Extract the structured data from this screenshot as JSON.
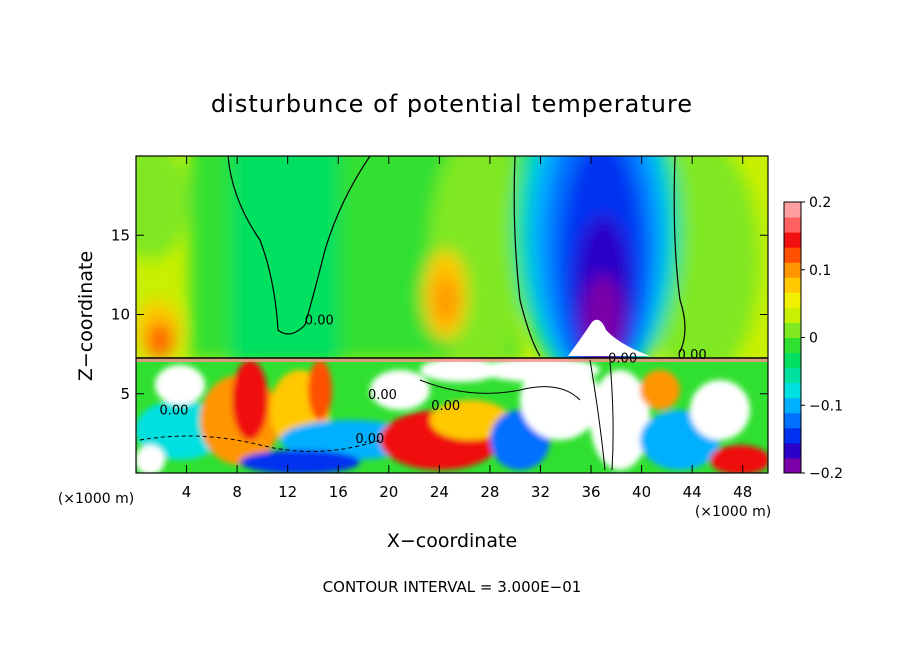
{
  "chart_data": {
    "type": "heatmap",
    "title": "disturbunce of potential temperature",
    "xlabel": "X−coordinate",
    "ylabel": "Z−coordinate",
    "xlim": [
      0,
      50
    ],
    "ylim": [
      0,
      20
    ],
    "x_ticks": [
      4,
      8,
      12,
      16,
      20,
      24,
      28,
      32,
      36,
      40,
      44,
      48
    ],
    "x_tick_labels": [
      "4",
      "8",
      "12",
      "16",
      "20",
      "24",
      "28",
      "32",
      "36",
      "40",
      "44",
      "48"
    ],
    "y_ticks": [
      5,
      10,
      15
    ],
    "y_tick_labels": [
      "5",
      "10",
      "15"
    ],
    "x_unit_left": "(×1000 m)",
    "x_unit_right": "(×1000 m)",
    "footer": "CONTOUR INTERVAL = 3.000E−01",
    "colorbar": {
      "min": -0.2,
      "max": 0.2,
      "ticks": [
        0.2,
        0.1,
        0,
        -0.1,
        -0.2
      ],
      "tick_labels": [
        "0.2",
        "0.1",
        "0",
        "−0.1",
        "−0.2"
      ],
      "colors": [
        "#7a00a8",
        "#2a00c8",
        "#0030f0",
        "#0070ff",
        "#00b0ff",
        "#00e0e0",
        "#00e0a0",
        "#00e060",
        "#30e030",
        "#80e820",
        "#c8f000",
        "#f0f000",
        "#ffc800",
        "#ff9600",
        "#ff5000",
        "#f01010",
        "#ff6060",
        "#ffa0a0"
      ]
    },
    "contour_labels": [
      {
        "text": "0.00",
        "x": 14.5,
        "z": 9.7
      },
      {
        "text": "0.00",
        "x": 38.5,
        "z": 7.3
      },
      {
        "text": "0.00",
        "x": 44.0,
        "z": 7.5
      },
      {
        "text": "0.00",
        "x": 19.5,
        "z": 5.0
      },
      {
        "text": "0.00",
        "x": 24.5,
        "z": 4.3
      },
      {
        "text": "0.00",
        "x": 3.0,
        "z": 4.0
      },
      {
        "text": "0.00",
        "x": 18.5,
        "z": 2.2
      }
    ],
    "grid": false
  }
}
